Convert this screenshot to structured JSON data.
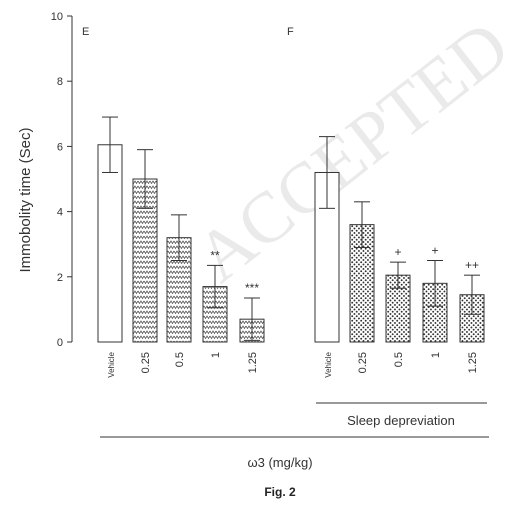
{
  "figure": {
    "caption": "Fig. 2",
    "watermark": "ACCEPTED",
    "group_labels": {
      "sleep": "Sleep depreviation",
      "dose": "ω3 (mg/kg)"
    }
  },
  "chart_data": {
    "type": "bar",
    "ylabel": "Immobolity time (Sec)",
    "xlabel": "ω3 (mg/kg)",
    "ylim": [
      0,
      10
    ],
    "yticks": [
      0,
      2,
      4,
      6,
      8,
      10
    ],
    "grid": false,
    "panels": [
      {
        "letter": "E",
        "categories": [
          "Vehicle",
          "0.25",
          "0.5",
          "1",
          "1.25"
        ],
        "values": [
          6.05,
          5.0,
          3.2,
          1.7,
          0.7
        ],
        "errors": [
          0.85,
          0.9,
          0.7,
          0.65,
          0.65
        ],
        "patterns": [
          "white",
          "zigzag",
          "zigzag",
          "zigzag",
          "zigzag"
        ],
        "significance": [
          "",
          "",
          "",
          "**",
          "***"
        ]
      },
      {
        "letter": "F",
        "categories": [
          "Vehicle",
          "0.25",
          "0.5",
          "1",
          "1.25"
        ],
        "values": [
          5.2,
          3.6,
          2.05,
          1.8,
          1.45
        ],
        "errors": [
          1.1,
          0.7,
          0.4,
          0.7,
          0.6
        ],
        "patterns": [
          "white",
          "dots",
          "dots",
          "dots",
          "dots"
        ],
        "significance": [
          "",
          "",
          "+",
          "+",
          "++"
        ]
      }
    ]
  }
}
